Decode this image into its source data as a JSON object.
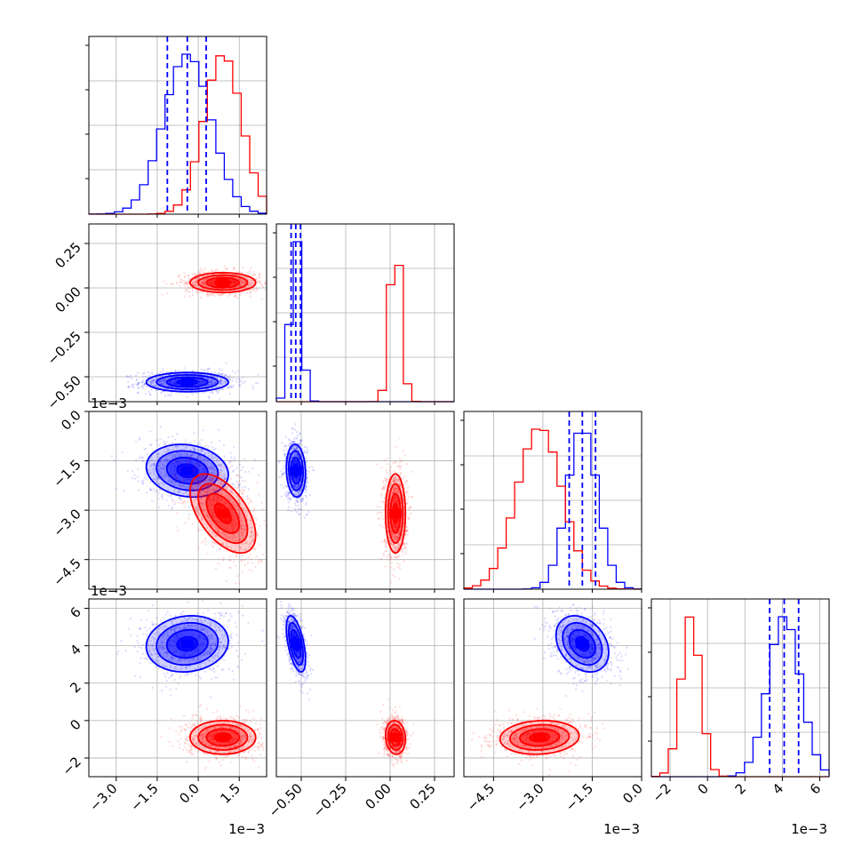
{
  "chart_data": {
    "type": "corner",
    "colors": {
      "blue": "#0000ff",
      "red": "#ff0000",
      "grid": "#b0b0b0"
    },
    "parameters": [
      {
        "range": [
          -0.004,
          0.0025
        ],
        "ticks": [
          -0.003,
          -0.0015,
          0.0,
          0.0015
        ],
        "tick_labels": [
          "−3.0",
          "−1.5",
          "0.0",
          "1.5"
        ],
        "offset_label": "1e−3"
      },
      {
        "range": [
          -0.64,
          0.36
        ],
        "ticks": [
          -0.5,
          -0.25,
          0.0,
          0.25
        ],
        "tick_labels": [
          "−0.50",
          "−0.25",
          "0.00",
          "0.25"
        ],
        "offset_label": ""
      },
      {
        "range": [
          -0.0054,
          0.0
        ],
        "ticks": [
          -0.0045,
          -0.003,
          -0.0015,
          0.0
        ],
        "tick_labels": [
          "−4.5",
          "−3.0",
          "−1.5",
          "0.0"
        ],
        "offset_label": "1e−3"
      },
      {
        "range": [
          -0.003,
          0.0065
        ],
        "ticks": [
          -0.002,
          0.0,
          0.002,
          0.004,
          0.006
        ],
        "tick_labels": [
          "−2",
          "0",
          "2",
          "4",
          "6"
        ],
        "offset_label": "1e−3"
      }
    ],
    "series": [
      {
        "color": "blue",
        "mean": [
          -0.0004,
          -0.53,
          -0.0018,
          0.0041
        ],
        "sigma": [
          0.00075,
          0.027,
          0.0004,
          0.00075
        ],
        "corr": {
          "0-2": -0.15,
          "0-3": 0.1,
          "1-2": -0.1,
          "1-3": -0.55,
          "2-3": -0.3
        }
      },
      {
        "color": "red",
        "mean": [
          0.0009,
          0.03,
          -0.0031,
          -0.0009
        ],
        "sigma": [
          0.0006,
          0.028,
          0.0006,
          0.00045
        ],
        "corr": {
          "0-2": -0.55,
          "0-3": 0.0,
          "1-2": 0.0,
          "1-3": -0.1,
          "2-3": 0.1
        }
      }
    ],
    "quantile_lines": {
      "color": "blue",
      "values": [
        [
          -0.00113,
          -0.0004,
          0.00029
        ],
        [
          -0.557,
          -0.531,
          -0.504
        ],
        [
          -0.0022,
          -0.0018,
          -0.0014
        ],
        [
          0.00332,
          0.0041,
          0.00487
        ]
      ]
    },
    "contour_levels": [
      0.5,
      1.0,
      1.5,
      2.0
    ],
    "grid": true,
    "legend": "none"
  }
}
